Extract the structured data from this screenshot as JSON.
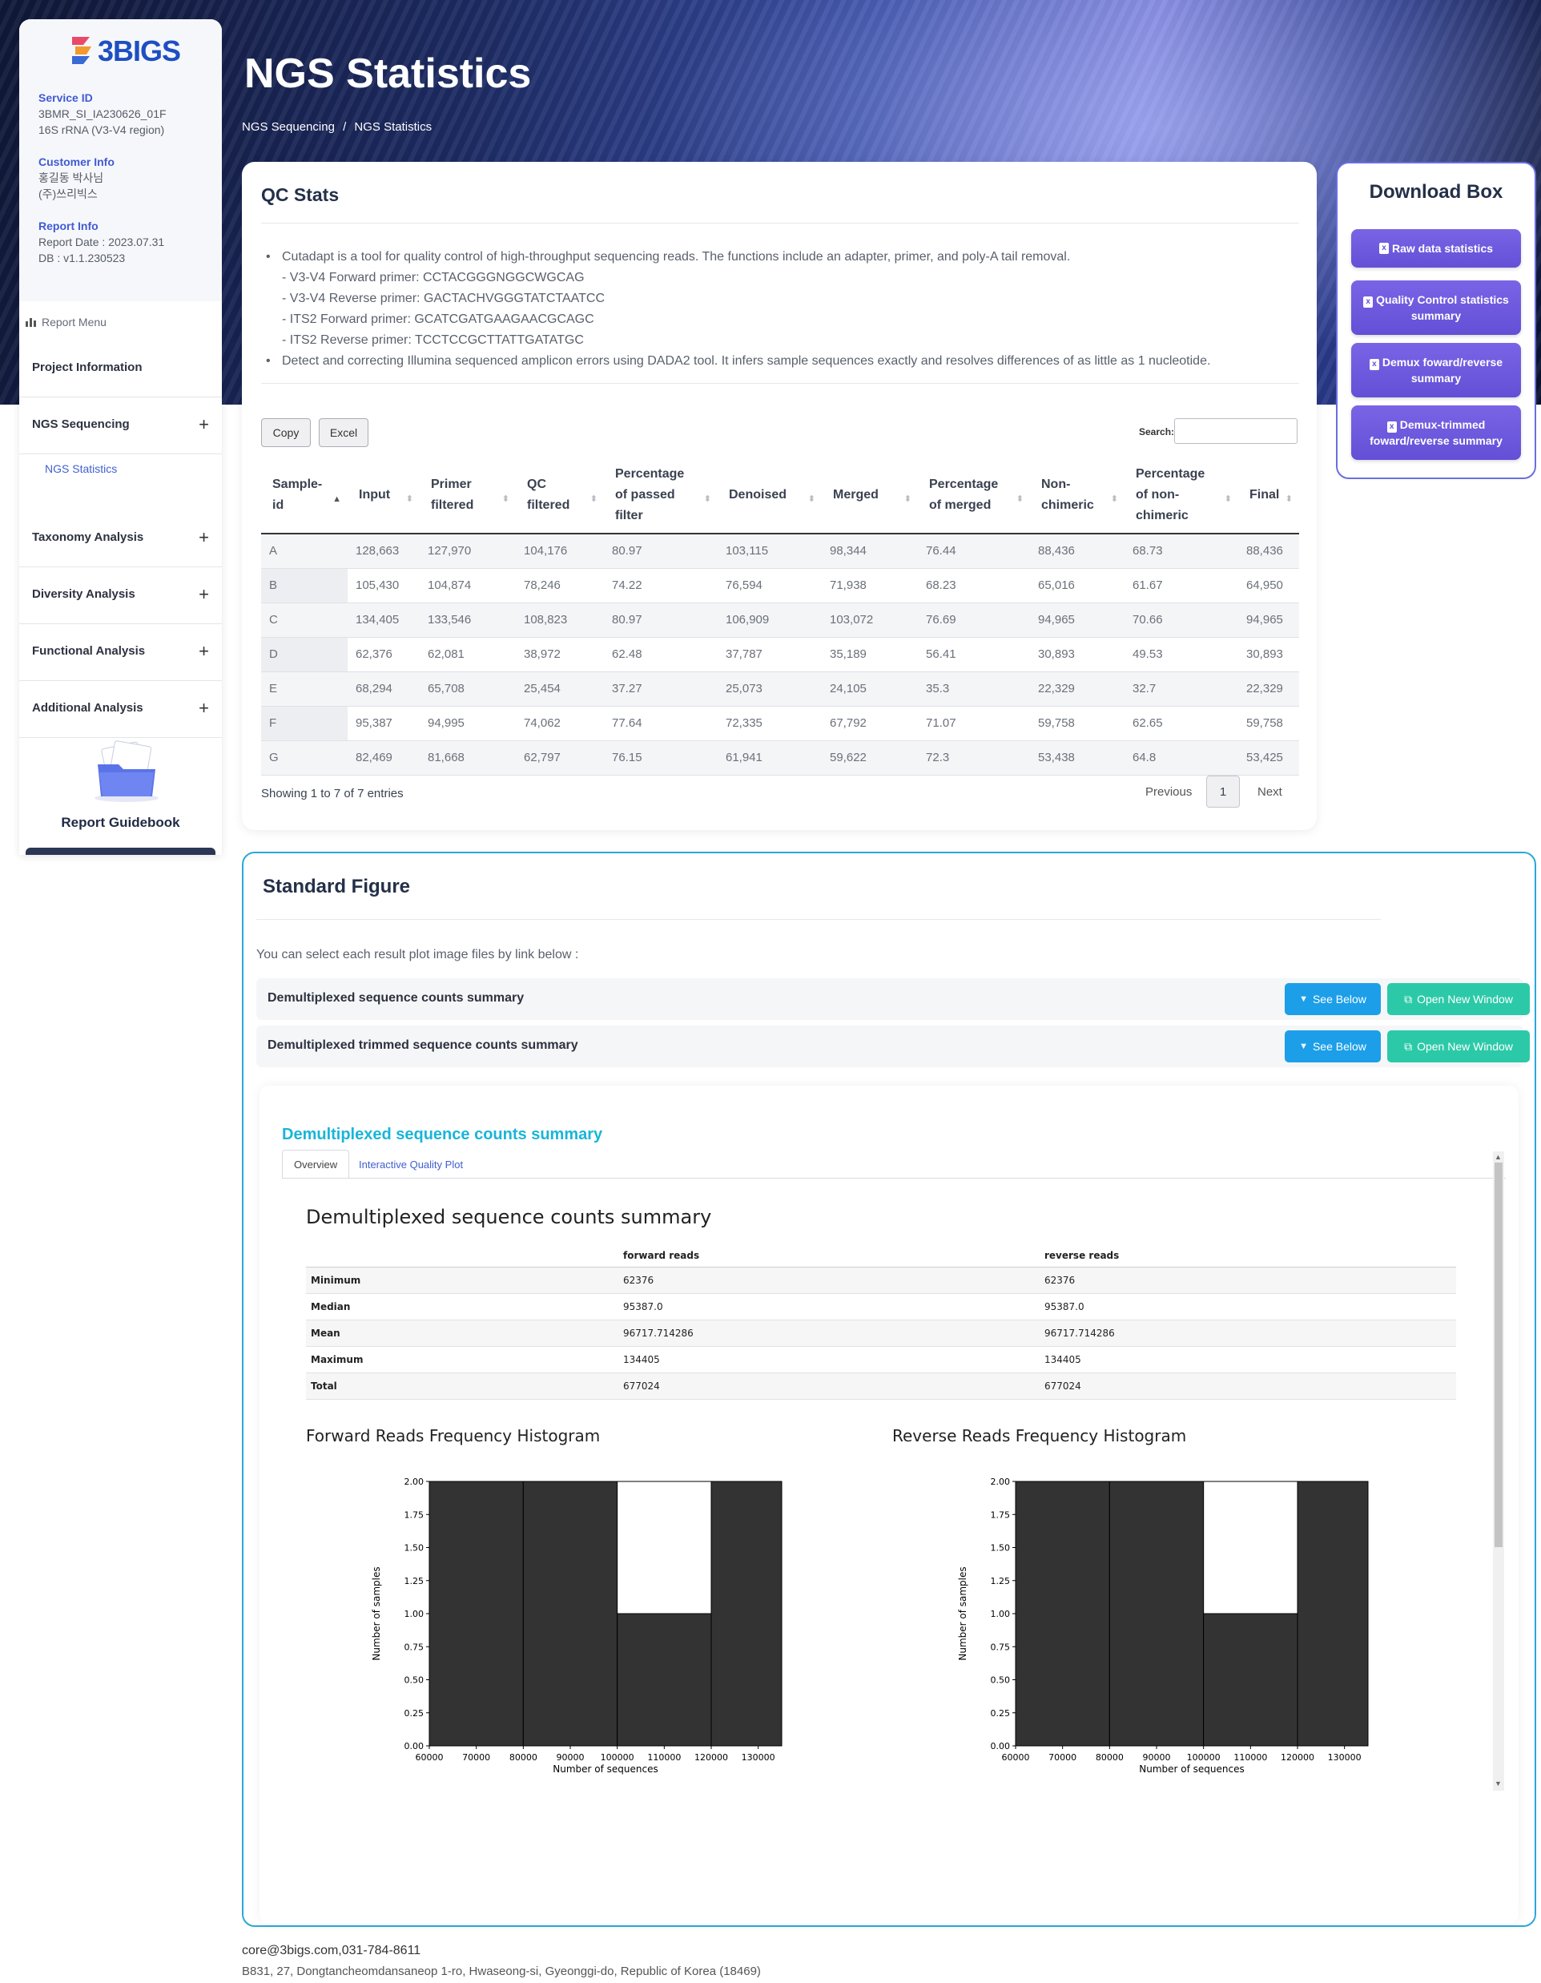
{
  "hero": {
    "title": "NGS Statistics",
    "breadcrumb": [
      "NGS Sequencing",
      "/",
      "NGS Statistics"
    ]
  },
  "sidebar": {
    "logo_text": "3BIGS",
    "service_id_label": "Service ID",
    "service_id_lines": [
      "3BMR_SI_IA230626_01F",
      "16S rRNA (V3-V4 region)"
    ],
    "customer_label": "Customer Info",
    "customer_lines": [
      "홍길동 박사님",
      "(주)쓰리빅스"
    ],
    "report_label": "Report Info",
    "report_lines": [
      "Report Date : 2023.07.31",
      "DB : v1.1.230523"
    ],
    "menu_heading": "Report Menu",
    "menu_items": [
      {
        "label": "Project Information",
        "plus": ""
      },
      {
        "label": "NGS Sequencing",
        "plus": "+"
      },
      {
        "label": "Taxonomy Analysis",
        "plus": "+"
      },
      {
        "label": "Diversity Analysis",
        "plus": "+"
      },
      {
        "label": "Functional Analysis",
        "plus": "+"
      },
      {
        "label": "Additional Analysis",
        "plus": "+"
      }
    ],
    "sub_item": "NGS Statistics",
    "guidebook_label": "Report Guidebook"
  },
  "qc": {
    "title": "QC Stats",
    "bullet1": "Cutadapt is a tool for quality control of high-throughput sequencing reads. The functions include an adapter, primer, and poly-A tail removal.",
    "sub_lines": [
      "- V3-V4 Forward primer: CCTACGGGNGGCWGCAG",
      "- V3-V4 Reverse primer: GACTACHVGGGTATCTAATCC",
      "- ITS2 Forward primer: GCATCGATGAAGAACGCAGC",
      "- ITS2 Reverse primer: TCCTCCGCTTATTGATATGC"
    ],
    "bullet2": "Detect and correcting Illumina sequenced amplicon errors using DADA2 tool. It infers sample sequences exactly and resolves differences of as little as 1 nucleotide.",
    "copy_label": "Copy",
    "excel_label": "Excel",
    "search_label": "Search:",
    "columns": [
      "Sample-id",
      "Input",
      "Primer filtered",
      "QC filtered",
      "Percentage of passed filter",
      "Denoised",
      "Merged",
      "Percentage of merged",
      "Non-chimeric",
      "Percentage of non-chimeric",
      "Final"
    ],
    "rows": [
      [
        "A",
        "128,663",
        "127,970",
        "104,176",
        "80.97",
        "103,115",
        "98,344",
        "76.44",
        "88,436",
        "68.73",
        "88,436"
      ],
      [
        "B",
        "105,430",
        "104,874",
        "78,246",
        "74.22",
        "76,594",
        "71,938",
        "68.23",
        "65,016",
        "61.67",
        "64,950"
      ],
      [
        "C",
        "134,405",
        "133,546",
        "108,823",
        "80.97",
        "106,909",
        "103,072",
        "76.69",
        "94,965",
        "70.66",
        "94,965"
      ],
      [
        "D",
        "62,376",
        "62,081",
        "38,972",
        "62.48",
        "37,787",
        "35,189",
        "56.41",
        "30,893",
        "49.53",
        "30,893"
      ],
      [
        "E",
        "68,294",
        "65,708",
        "25,454",
        "37.27",
        "25,073",
        "24,105",
        "35.3",
        "22,329",
        "32.7",
        "22,329"
      ],
      [
        "F",
        "95,387",
        "94,995",
        "74,062",
        "77.64",
        "72,335",
        "67,792",
        "71.07",
        "59,758",
        "62.65",
        "59,758"
      ],
      [
        "G",
        "82,469",
        "81,668",
        "62,797",
        "76.15",
        "61,941",
        "59,622",
        "72.3",
        "53,438",
        "64.8",
        "53,425"
      ]
    ],
    "showing": "Showing 1 to 7 of 7 entries",
    "previous": "Previous",
    "page": "1",
    "next": "Next"
  },
  "download": {
    "title": "Download Box",
    "buttons": [
      "Raw data statistics",
      "Quality Control statistics summary",
      "Demux foward/reverse summary",
      "Demux-trimmed foward/reverse summary"
    ]
  },
  "standard": {
    "title": "Standard Figure",
    "intro": "You can select each result plot image files by link below :",
    "rows": [
      {
        "label": "Demultiplexed sequence counts summary",
        "see": "See Below",
        "open": "Open New Window"
      },
      {
        "label": "Demultiplexed trimmed sequence counts summary",
        "see": "See Below",
        "open": "Open New Window"
      }
    ],
    "panel_title": "Demultiplexed sequence counts summary",
    "tabs": [
      "Overview",
      "Interactive Quality Plot"
    ],
    "summary_heading": "Demultiplexed sequence counts summary",
    "summary_cols": [
      "",
      "forward reads",
      "reverse reads"
    ],
    "summary_rows": [
      [
        "Minimum",
        "62376",
        "62376"
      ],
      [
        "Median",
        "95387.0",
        "95387.0"
      ],
      [
        "Mean",
        "96717.714286",
        "96717.714286"
      ],
      [
        "Maximum",
        "134405",
        "134405"
      ],
      [
        "Total",
        "677024",
        "677024"
      ]
    ],
    "forward_hist_title": "Forward Reads Frequency Histogram",
    "reverse_hist_title": "Reverse Reads Frequency Histogram"
  },
  "chart_data": [
    {
      "type": "bar",
      "title": "Forward Reads Frequency Histogram",
      "xlabel": "Number of sequences",
      "ylabel": "Number of samples",
      "bin_edges": [
        60000,
        80000,
        100000,
        120000,
        135000
      ],
      "values": [
        2,
        2,
        1,
        2
      ],
      "xlim": [
        60000,
        135000
      ],
      "ylim": [
        0,
        2.0
      ],
      "xticks": [
        "60000",
        "70000",
        "80000",
        "90000",
        "100000",
        "110000",
        "120000",
        "130000"
      ],
      "yticks": [
        "0.00",
        "0.25",
        "0.50",
        "0.75",
        "1.00",
        "1.25",
        "1.50",
        "1.75",
        "2.00"
      ],
      "bar_color": "#333333"
    },
    {
      "type": "bar",
      "title": "Reverse Reads Frequency Histogram",
      "xlabel": "Number of sequences",
      "ylabel": "Number of samples",
      "bin_edges": [
        60000,
        80000,
        100000,
        120000,
        135000
      ],
      "values": [
        2,
        2,
        1,
        2
      ],
      "xlim": [
        60000,
        135000
      ],
      "ylim": [
        0,
        2.0
      ],
      "xticks": [
        "60000",
        "70000",
        "80000",
        "90000",
        "100000",
        "110000",
        "120000",
        "130000"
      ],
      "yticks": [
        "0.00",
        "0.25",
        "0.50",
        "0.75",
        "1.00",
        "1.25",
        "1.50",
        "1.75",
        "2.00"
      ],
      "bar_color": "#333333"
    }
  ],
  "footer": {
    "contact": "core@3bigs.com,031-784-8611",
    "address": "B831, 27, Dongtancheomdansaneop 1-ro, Hwaseong-si, Gyeonggi-do, Republic of Korea (18469)"
  }
}
